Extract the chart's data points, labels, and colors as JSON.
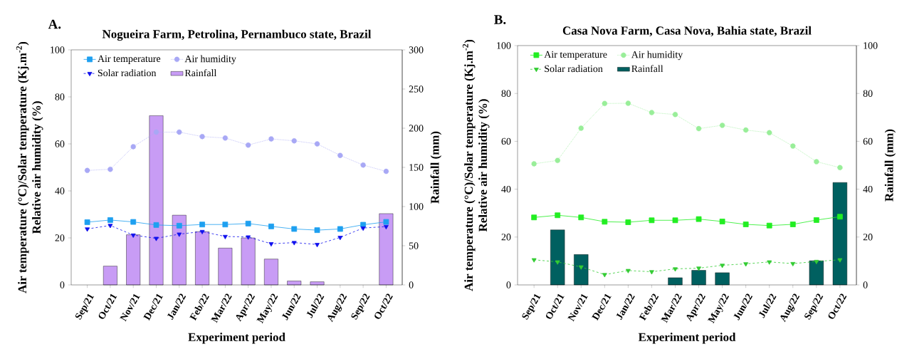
{
  "chart_data": [
    {
      "type": "line",
      "title": "Nogueira Farm, Petrolina, Pernambuco state, Brazil",
      "xlabel": "Experiment period",
      "ylabel": [
        "Air temperature (°C)/Solar temperature (Kj.m$^{-2}$)",
        "Relative air humidity (%)"
      ],
      "y2label": "Rainfall (mm)",
      "annotations": [
        "A."
      ],
      "categories": [
        "Sep/21",
        "Oct/21",
        "Nov/21",
        "Dec/21",
        "Jan/22",
        "Feb/22",
        "Mar/22",
        "Apr/22",
        "May/22",
        "Jun/22",
        "Jul/22",
        "Aug/22",
        "Sep/22",
        "Oct/22"
      ],
      "ylim": [
        0,
        100
      ],
      "yticks": [
        0,
        20,
        40,
        60,
        80,
        100
      ],
      "y2lim": [
        0,
        300
      ],
      "y2ticks": [
        0,
        50,
        100,
        150,
        200,
        250,
        300
      ],
      "legend": "top left",
      "grid": false,
      "series": [
        {
          "name": "Air temperature",
          "color": "#1ea0f0",
          "marker": "square",
          "line_style": "solid",
          "values": [
            26.7,
            27.6,
            26.8,
            25.5,
            25.2,
            25.7,
            25.7,
            26.1,
            24.9,
            23.8,
            23.3,
            23.8,
            25.6,
            26.8
          ]
        },
        {
          "name": "Air humidity",
          "color": "#a8a8f5",
          "marker": "circle",
          "line_style": "dotted",
          "values": [
            48.7,
            49.2,
            58.8,
            65.0,
            65.0,
            63.1,
            62.5,
            59.5,
            62.1,
            61.3,
            60.0,
            55.1,
            51.0,
            48.3
          ]
        },
        {
          "name": "Solar radiation",
          "color": "#1010ee",
          "marker": "triangle",
          "line_style": "dashed",
          "values": [
            23.8,
            25.3,
            21.2,
            19.8,
            21.6,
            22.7,
            20.6,
            20.4,
            17.5,
            18.0,
            17.2,
            20.2,
            24.2,
            24.8
          ]
        },
        {
          "name": "Rainfall",
          "type": "bar",
          "axis": "y2",
          "color": "#c89cf5",
          "values": [
            null,
            24,
            64,
            216,
            89,
            68,
            47,
            60,
            33,
            5,
            4,
            null,
            null,
            91
          ]
        }
      ]
    },
    {
      "type": "line",
      "title": "Casa Nova Farm, Casa Nova, Bahia state, Brazil",
      "xlabel": "Experiment period",
      "ylabel": [
        "Air temperature (°C)/Solar temperature (Kj.m$^{-2}$)",
        "Relative air humidity (%)"
      ],
      "y2label": "Rainfall (mm)",
      "annotations": [
        "B."
      ],
      "categories": [
        "Sep/21",
        "Oct/21",
        "Nov/21",
        "Dec/21",
        "Jan/22",
        "Feb/22",
        "Mar/22",
        "Apr/22",
        "May/22",
        "Jun/22",
        "Jul/22",
        "Aug/22",
        "Sep/22",
        "Oct/22"
      ],
      "ylim": [
        0,
        100
      ],
      "yticks": [
        0,
        20,
        40,
        60,
        80,
        100
      ],
      "y2lim": [
        0,
        100
      ],
      "y2ticks": [
        0,
        20,
        40,
        60,
        80,
        100
      ],
      "legend": "top left",
      "grid": false,
      "series": [
        {
          "name": "Air temperature",
          "color": "#22ee22",
          "marker": "square",
          "line_style": "solid",
          "values": [
            28.2,
            29.1,
            28.2,
            26.4,
            26.2,
            27.0,
            27.0,
            27.5,
            26.5,
            25.3,
            24.8,
            25.3,
            27.1,
            28.5
          ]
        },
        {
          "name": "Air humidity",
          "color": "#99ee99",
          "marker": "circle",
          "line_style": "dotted",
          "values": [
            50.6,
            52.0,
            65.5,
            75.8,
            75.9,
            72.0,
            71.2,
            65.3,
            66.7,
            64.7,
            63.6,
            58.0,
            51.5,
            49.0
          ]
        },
        {
          "name": "Solar radiation",
          "color": "#33cc33",
          "marker": "triangle",
          "line_style": "dashed",
          "values": [
            10.5,
            9.6,
            7.5,
            4.3,
            6.0,
            5.5,
            6.7,
            7.0,
            8.2,
            8.8,
            9.6,
            8.9,
            9.8,
            10.5
          ]
        },
        {
          "name": "Rainfall",
          "type": "bar",
          "axis": "y2",
          "color": "#006060",
          "values": [
            null,
            23,
            12.7,
            null,
            null,
            null,
            3.0,
            6.1,
            5.1,
            null,
            null,
            null,
            10.1,
            42.8
          ]
        }
      ]
    }
  ]
}
